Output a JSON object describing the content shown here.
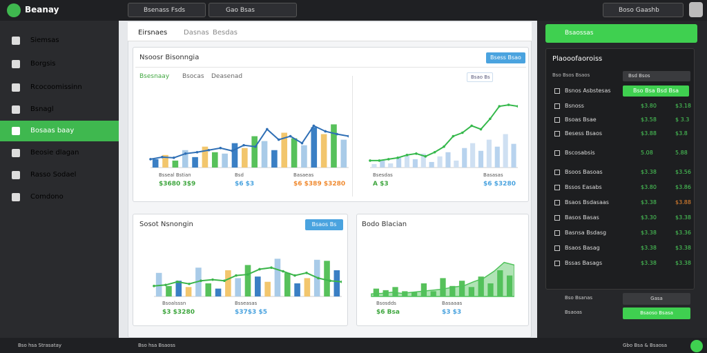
{
  "topbar": {
    "brand": "Beanay",
    "search": "Bsenass Fsds",
    "filter": "Gao Bsas",
    "account": "Boso Gaashb"
  },
  "sidebar": {
    "items": [
      "Siemsas",
      "Borgsis",
      "Rcocoomissinn",
      "Bsnagl",
      "Bosaas baay",
      "Beosie dlagan",
      "Rasso Sodael",
      "Comdono"
    ],
    "active": 4,
    "footer": "Bso hsa Strasatay"
  },
  "main": {
    "tabs": [
      "Eirsnaes",
      "Dasnas",
      "Besdas"
    ],
    "overview": {
      "title": "Nsoosr Bisonngia",
      "button": "Bsess Bsao",
      "tabs": [
        "Bsesnaay",
        "Bsocas",
        "Deasenad"
      ],
      "filter": "Bsao Bs"
    },
    "charts": [
      {
        "type": "bar-line",
        "ylim": [
          0,
          100
        ],
        "bars": [
          12,
          18,
          10,
          25,
          15,
          30,
          22,
          20,
          35,
          28,
          45,
          38,
          25,
          50,
          42,
          32,
          58,
          48,
          62,
          40
        ],
        "bar_colors": [
          "#3a7fc4",
          "#f2c66d",
          "#57c15b",
          "#a9cbe8"
        ],
        "line": [
          12,
          15,
          14,
          20,
          22,
          25,
          28,
          24,
          32,
          30,
          55,
          40,
          45,
          35,
          60,
          52,
          48,
          45
        ],
        "line_color": "#2f6fb5",
        "stats": [
          {
            "label": "Bsseal Bstian",
            "value": "$3680 3$9"
          },
          {
            "label": "Bsd",
            "value": "$6 $3"
          },
          {
            "label": "Basaeas",
            "value": "$6 $389 $3280"
          }
        ]
      },
      {
        "type": "bar-line",
        "ylim": [
          0,
          100
        ],
        "bars": [
          5,
          10,
          6,
          14,
          18,
          12,
          20,
          8,
          16,
          22,
          10,
          28,
          35,
          24,
          40,
          30,
          48,
          34
        ],
        "bar_colors": [
          "#cfe0f2",
          "#b8d3ee"
        ],
        "line": [
          10,
          10,
          12,
          14,
          18,
          20,
          16,
          22,
          30,
          45,
          50,
          60,
          55,
          70,
          88,
          90,
          88
        ],
        "line_color": "#35b84b",
        "stats": [
          {
            "label": "Bsesdas",
            "value": "A $3"
          },
          {
            "label": "Basasas",
            "value": "$6 $3280"
          }
        ]
      },
      {
        "type": "bar-line",
        "ylim": [
          0,
          100
        ],
        "bars": [
          45,
          20,
          30,
          18,
          55,
          25,
          15,
          50,
          35,
          60,
          38,
          28,
          72,
          45,
          25,
          35,
          70,
          68,
          50
        ],
        "bar_colors": [
          "#a9cbe8",
          "#57c15b",
          "#3a7fc4",
          "#f2c66d"
        ],
        "line": [
          20,
          22,
          28,
          24,
          30,
          32,
          30,
          40,
          42,
          52,
          55,
          48,
          40,
          45,
          35,
          30,
          28
        ],
        "line_color": "#3bb54a",
        "stats": [
          {
            "label": "Bsoalsssn",
            "value": "$3 $3280"
          },
          {
            "label": "Bsseasas",
            "value": "$37$3 $5"
          }
        ]
      },
      {
        "type": "bar-area",
        "ylim": [
          0,
          100
        ],
        "bars": [
          15,
          12,
          18,
          10,
          8,
          25,
          10,
          35,
          20,
          30,
          18,
          38,
          25,
          50,
          40
        ],
        "bar_colors": [
          "#57c15b"
        ],
        "line": [
          5,
          6,
          8,
          6,
          8,
          10,
          12,
          14,
          18,
          20,
          28,
          35,
          48,
          65,
          60
        ],
        "line_color": "#4fc25a",
        "stats": [
          {
            "label": "Bsosdds",
            "value": "$6 Bsa"
          },
          {
            "label": "Basaaas",
            "value": "$3 $3"
          }
        ]
      }
    ],
    "cards": [
      {
        "title": "Sosot Nsnongin",
        "button": "Bsaos Bs"
      },
      {
        "title": "Bodo Blacian"
      }
    ]
  },
  "panel": {
    "button": "Bsaossas",
    "title": "Plaooofaoroiss",
    "field": "Bsd Bsos",
    "label": "Bso Bsos Bsaos",
    "rows": [
      {
        "label": "Bsnos Asbstesas",
        "a": "Bso Bsa Bsd Bsa"
      },
      {
        "label": "Bsnoss",
        "a": "$3.80",
        "b": "$3.18"
      },
      {
        "label": "Bsoas Bsae",
        "a": "$3.58",
        "b": "$ 3.3"
      },
      {
        "label": "Besess Bsaos",
        "a": "$3.88",
        "b": "$3.8"
      },
      {
        "label": "Bscosabsis",
        "a": "5.08",
        "b": "5.88"
      },
      {
        "label": "Bsoos Basoas",
        "a": "$3.38",
        "b": "$3.56"
      },
      {
        "label": "Bssos Easabs",
        "a": "$3.80",
        "b": "$3.86"
      },
      {
        "label": "Bsaos Bsdasaas",
        "a": "$3.38",
        "b": "$3.88"
      },
      {
        "label": "Basos Basas",
        "a": "$3.30",
        "b": "$3.38"
      },
      {
        "label": "Basnsa Bsdasg",
        "a": "$3.38",
        "b": "$3.36"
      },
      {
        "label": "Bsaos Basag",
        "a": "$3.38",
        "b": "$3.38"
      },
      {
        "label": "Bssas Basags",
        "a": "$3.38",
        "b": "$3.38"
      }
    ],
    "bottom": [
      {
        "label": "Bso Bsanas",
        "value": "Gasa"
      },
      {
        "label": "Bsaoas",
        "value": "Bsaoso Bsasa"
      }
    ]
  },
  "statusbar": {
    "left": "Bso hsa Bsaoss",
    "right": "Gbo Bsa & Bsaosa"
  }
}
